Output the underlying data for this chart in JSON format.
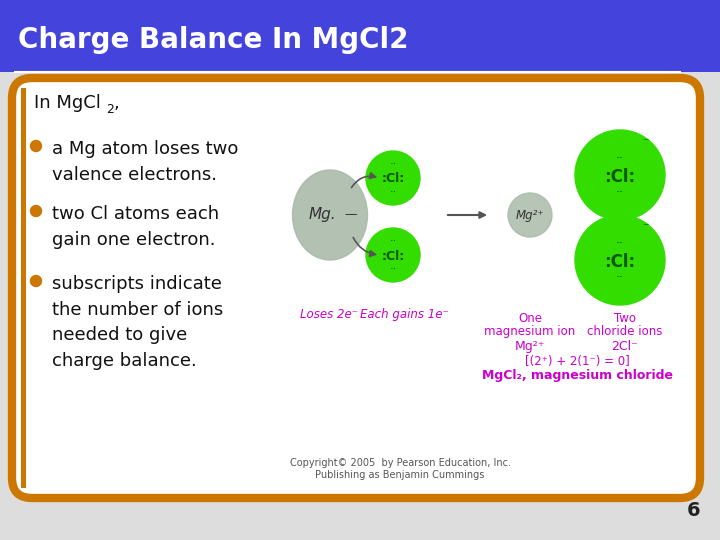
{
  "title": "Charge Balance In MgCl2",
  "title_bg": "#4444dd",
  "title_color": "#ffffff",
  "title_fontsize": 20,
  "body_bg": "#ffffff",
  "border_color": "#cc7700",
  "outer_bg": "#dddddd",
  "header_text": "In MgCl",
  "header_sub": "2",
  "header_comma": ",",
  "bullets": [
    "a Mg atom loses two\nvalence electrons.",
    "two Cl atoms each\ngain one electron.",
    "subscripts indicate\nthe number of ions\nneeded to give\ncharge balance."
  ],
  "bullet_color": "#cc7700",
  "text_color": "#111111",
  "copyright": "Copyright© 2005  by Pearson Education, Inc.\nPublishing as Benjamin Cummings",
  "page_number": "6",
  "mg_color": "#aabbaa",
  "cl_color": "#33dd00",
  "cl_text_color": "#005500",
  "arrow_color": "#555555",
  "loses_text": "Loses 2e⁻",
  "gains_text": "Each gains 1e⁻",
  "magenta": "#cc00cc",
  "one_mg_label": "One\nmagnesium ion",
  "two_cl_label": "Two\nchloride ions",
  "mg2_formula": "Mg²⁺",
  "cl_formula": "2Cl⁻",
  "balance_eq": "[(2⁺) + 2(1⁻) = 0]",
  "final_formula": "MgCl₂, magnesium chloride",
  "mg_label": "Mg.—",
  "mg2_label": "Mg²⁺"
}
